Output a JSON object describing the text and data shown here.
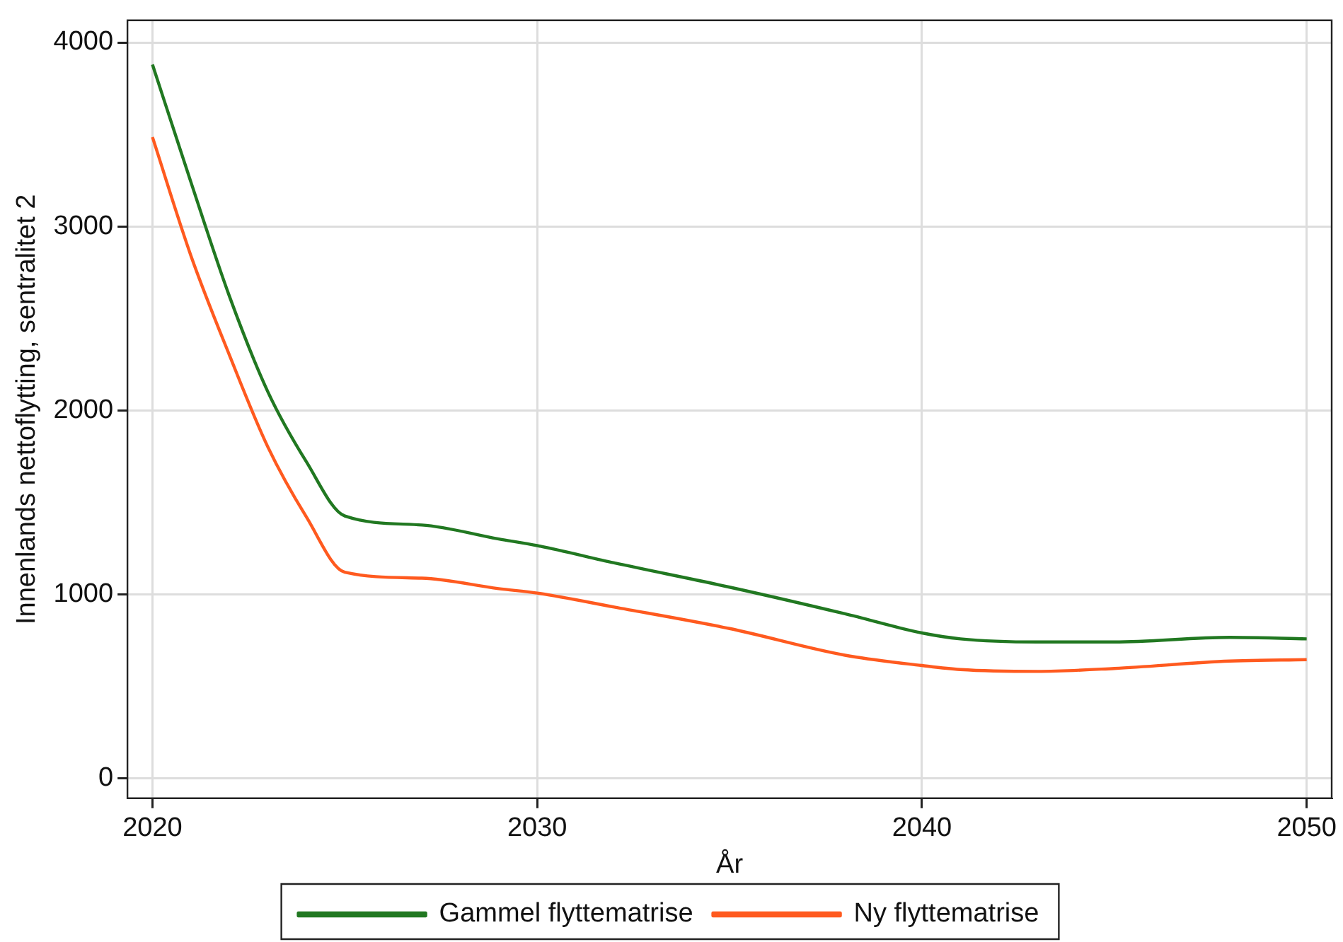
{
  "chart_data": {
    "type": "line",
    "xlabel": "År",
    "ylabel": "Innenlands nettoflytting, sentralitet 2",
    "x": [
      2020,
      2021,
      2022,
      2023,
      2024,
      2025,
      2027,
      2029,
      2030,
      2032,
      2035,
      2038,
      2040,
      2041,
      2043,
      2045,
      2048,
      2050
    ],
    "series": [
      {
        "name": "Gammel flyttematrise",
        "color": "#217821",
        "values": [
          3880,
          3240,
          2620,
          2100,
          1720,
          1425,
          1376,
          1300,
          1264,
          1170,
          1038,
          893,
          789,
          757,
          740,
          740,
          765,
          757
        ]
      },
      {
        "name": "Ny flyttematrise",
        "color": "#ff5a1f",
        "values": [
          3485,
          2840,
          2300,
          1800,
          1420,
          1119,
          1087,
          1030,
          1006,
          930,
          813,
          668,
          612,
          590,
          580,
          596,
          636,
          644
        ]
      }
    ],
    "xlim": [
      2019.35,
      2050.65
    ],
    "xticks": [
      2020,
      2030,
      2040,
      2050
    ],
    "ylim": [
      -110,
      4120
    ],
    "yticks": [
      0,
      1000,
      2000,
      3000,
      4000
    ],
    "grid": true,
    "legend": "bottom",
    "marker": "none",
    "line_style": "solid"
  }
}
